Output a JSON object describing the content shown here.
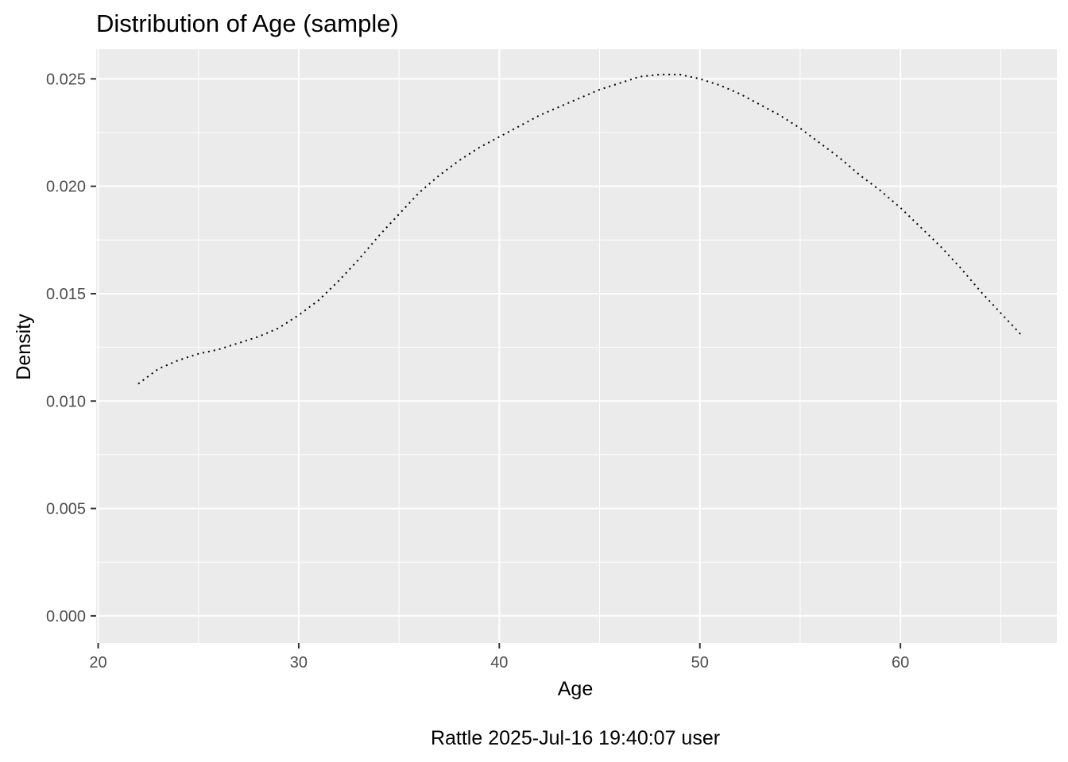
{
  "chart_data": {
    "type": "line",
    "title": "Distribution of Age (sample)",
    "xlabel": "Age",
    "ylabel": "Density",
    "caption": "Rattle 2025-Jul-16 19:40:07 user",
    "xlim": [
      19.9,
      67.8
    ],
    "ylim": [
      -0.00126,
      0.02638
    ],
    "x_ticks": [
      20,
      30,
      40,
      50,
      60
    ],
    "x_tick_labels": [
      "20",
      "30",
      "40",
      "50",
      "60"
    ],
    "y_ticks": [
      0.0,
      0.005,
      0.01,
      0.015,
      0.02,
      0.025
    ],
    "y_tick_labels": [
      "0.000",
      "0.005",
      "0.010",
      "0.015",
      "0.020",
      "0.025"
    ],
    "x_minor": [
      25,
      35,
      45,
      55,
      65
    ],
    "y_minor": [
      0.0025,
      0.0075,
      0.0125,
      0.0175,
      0.0225
    ],
    "grid": true,
    "panel_background": "#ebebeb",
    "grid_color": "#ffffff",
    "line_color": "#000000",
    "line_style": "dotted",
    "series": [
      {
        "x": [
          22,
          23,
          24,
          25,
          26,
          27,
          28,
          29,
          30,
          31,
          32,
          33,
          34,
          35,
          36,
          37,
          38,
          39,
          40,
          41,
          42,
          43,
          44,
          45,
          46,
          47,
          48,
          49,
          50,
          51,
          52,
          53,
          54,
          55,
          56,
          57,
          58,
          59,
          60,
          61,
          62,
          63,
          64,
          65,
          66
        ],
        "y": [
          0.0108,
          0.0115,
          0.0119,
          0.0122,
          0.0124,
          0.0127,
          0.013,
          0.0134,
          0.014,
          0.0147,
          0.0156,
          0.0166,
          0.0177,
          0.0187,
          0.0197,
          0.0205,
          0.0212,
          0.0218,
          0.0223,
          0.0228,
          0.0233,
          0.0237,
          0.0241,
          0.0245,
          0.0248,
          0.0251,
          0.0252,
          0.0252,
          0.025,
          0.0247,
          0.0243,
          0.0238,
          0.0233,
          0.0227,
          0.022,
          0.0213,
          0.0205,
          0.0198,
          0.019,
          0.0181,
          0.0172,
          0.0162,
          0.0151,
          0.0141,
          0.0131
        ]
      }
    ]
  }
}
